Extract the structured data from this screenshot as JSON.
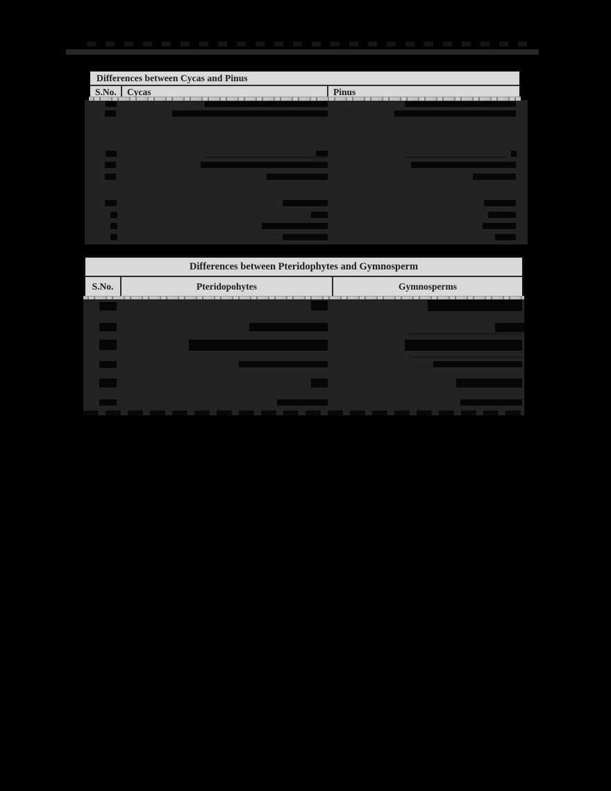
{
  "page": {
    "background": "#000000",
    "kind": "dark document page with two comparison tables, body text redacted/illegible"
  },
  "colors": {
    "header_bg": "#d9d9d9",
    "header_text": "#1c1c1c",
    "table_body_bg": "#232323",
    "redaction_bar": "#060606",
    "top_rule": "#282828"
  },
  "tables": [
    {
      "title": "Differences between Cycas and Pinus",
      "columns": [
        "S.No.",
        "Cycas",
        "Pinus"
      ]
    },
    {
      "title": "Differences between Pteridophytes and Gymnosperm",
      "columns": [
        "S.No.",
        "Pteridopohytes",
        "Gymnosperms"
      ]
    }
  ]
}
